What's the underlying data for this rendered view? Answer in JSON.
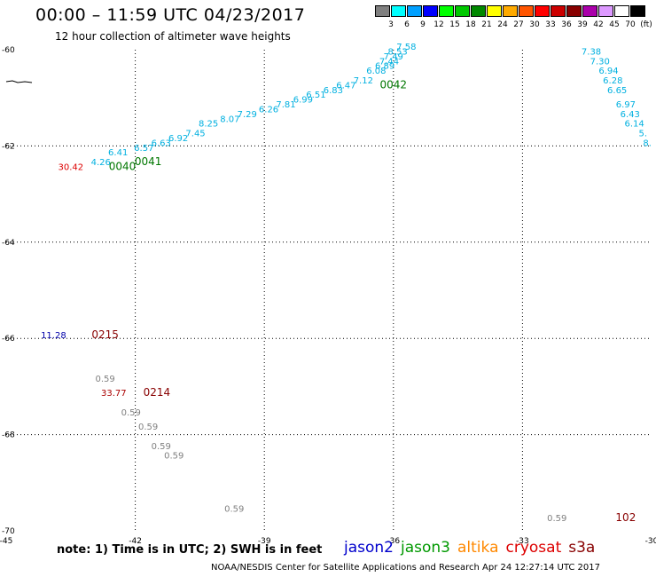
{
  "header": {
    "title": "00:00 – 11:59 UTC 04/23/2017",
    "subtitle": "12 hour collection of altimeter wave heights"
  },
  "color_scale": {
    "colors": [
      "#808080",
      "#00ffff",
      "#00a0ff",
      "#0000ff",
      "#00ff00",
      "#00c800",
      "#008800",
      "#ffff00",
      "#ffaa00",
      "#ff5500",
      "#ff0000",
      "#cc0000",
      "#880000",
      "#aa00aa",
      "#dd99ff",
      "#ffffff",
      "#000000"
    ],
    "labels": [
      "3",
      "6",
      "9",
      "12",
      "15",
      "18",
      "21",
      "24",
      "27",
      "30",
      "33",
      "36",
      "39",
      "42",
      "45",
      "70",
      "(ft)"
    ]
  },
  "chart_data": {
    "type": "scatter",
    "x_ticks": [
      "-45",
      "-42",
      "-39",
      "-36",
      "-33",
      "-30"
    ],
    "y_ticks": [
      "-60",
      "-62",
      "-64",
      "-66",
      "-68",
      "-70"
    ],
    "xlim": [
      -45,
      -30
    ],
    "ylim": [
      -70,
      -60
    ],
    "grid": true,
    "swh_labels": [
      {
        "text": "7.58",
        "lon": -35.7,
        "lat": -60.0,
        "color": "#00b0e0"
      },
      {
        "text": "8.53",
        "lon": -35.9,
        "lat": -60.1,
        "color": "#00b0e0"
      },
      {
        "text": "7.49",
        "lon": -36.0,
        "lat": -60.2,
        "color": "#00b0e0"
      },
      {
        "text": "7.44",
        "lon": -36.1,
        "lat": -60.3,
        "color": "#00b0e0"
      },
      {
        "text": "6.89",
        "lon": -36.2,
        "lat": -60.4,
        "color": "#00b0e0"
      },
      {
        "text": "6.08",
        "lon": -36.4,
        "lat": -60.5,
        "color": "#00b0e0"
      },
      {
        "text": "7.12",
        "lon": -36.7,
        "lat": -60.7,
        "color": "#00b0e0"
      },
      {
        "text": "6.47",
        "lon": -37.1,
        "lat": -60.8,
        "color": "#00b0e0"
      },
      {
        "text": "6.83",
        "lon": -37.4,
        "lat": -60.9,
        "color": "#00b0e0"
      },
      {
        "text": "6.51",
        "lon": -37.8,
        "lat": -61.0,
        "color": "#00b0e0"
      },
      {
        "text": "6.99",
        "lon": -38.1,
        "lat": -61.1,
        "color": "#00b0e0"
      },
      {
        "text": "7.81",
        "lon": -38.5,
        "lat": -61.2,
        "color": "#00b0e0"
      },
      {
        "text": "6.26",
        "lon": -38.9,
        "lat": -61.3,
        "color": "#00b0e0"
      },
      {
        "text": "7.29",
        "lon": -39.4,
        "lat": -61.4,
        "color": "#00b0e0"
      },
      {
        "text": "8.07",
        "lon": -39.8,
        "lat": -61.5,
        "color": "#00b0e0"
      },
      {
        "text": "8.25",
        "lon": -40.3,
        "lat": -61.6,
        "color": "#00b0e0"
      },
      {
        "text": "7.45",
        "lon": -40.6,
        "lat": -61.8,
        "color": "#00b0e0"
      },
      {
        "text": "6.92",
        "lon": -41.0,
        "lat": -61.9,
        "color": "#00b0e0"
      },
      {
        "text": "6.63",
        "lon": -41.4,
        "lat": -62.0,
        "color": "#00b0e0"
      },
      {
        "text": "6.57",
        "lon": -41.8,
        "lat": -62.1,
        "color": "#00b0e0"
      },
      {
        "text": "6.41",
        "lon": -42.4,
        "lat": -62.2,
        "color": "#00b0e0"
      },
      {
        "text": "4.26",
        "lon": -42.8,
        "lat": -62.4,
        "color": "#00b0e0"
      },
      {
        "text": "30.42",
        "lon": -43.5,
        "lat": -62.5,
        "color": "#dd0000"
      },
      {
        "text": "7.38",
        "lon": -31.4,
        "lat": -60.1,
        "color": "#00b0e0"
      },
      {
        "text": "7.30",
        "lon": -31.2,
        "lat": -60.3,
        "color": "#00b0e0"
      },
      {
        "text": "6.94",
        "lon": -31.0,
        "lat": -60.5,
        "color": "#00b0e0"
      },
      {
        "text": "6.28",
        "lon": -30.9,
        "lat": -60.7,
        "color": "#00b0e0"
      },
      {
        "text": "6.65",
        "lon": -30.8,
        "lat": -60.9,
        "color": "#00b0e0"
      },
      {
        "text": "6.97",
        "lon": -30.6,
        "lat": -61.2,
        "color": "#00b0e0"
      },
      {
        "text": "6.43",
        "lon": -30.5,
        "lat": -61.4,
        "color": "#00b0e0"
      },
      {
        "text": "6.14",
        "lon": -30.4,
        "lat": -61.6,
        "color": "#00b0e0"
      },
      {
        "text": "5.",
        "lon": -30.2,
        "lat": -61.8,
        "color": "#00b0e0"
      },
      {
        "text": "8.",
        "lon": -30.1,
        "lat": -62.0,
        "color": "#00b0e0"
      },
      {
        "text": "11.28",
        "lon": -43.9,
        "lat": -66.0,
        "color": "#0000aa"
      },
      {
        "text": "0.59",
        "lon": -42.7,
        "lat": -66.9,
        "color": "#808080"
      },
      {
        "text": "33.77",
        "lon": -42.5,
        "lat": -67.2,
        "color": "#aa0000"
      },
      {
        "text": "0.59",
        "lon": -42.1,
        "lat": -67.6,
        "color": "#808080"
      },
      {
        "text": "0.59",
        "lon": -41.7,
        "lat": -67.9,
        "color": "#808080"
      },
      {
        "text": "0.59",
        "lon": -41.4,
        "lat": -68.3,
        "color": "#808080"
      },
      {
        "text": "0.59",
        "lon": -41.1,
        "lat": -68.5,
        "color": "#808080"
      },
      {
        "text": "0.59",
        "lon": -39.7,
        "lat": -69.6,
        "color": "#808080"
      },
      {
        "text": "0.59",
        "lon": -32.2,
        "lat": -69.8,
        "color": "#808080"
      }
    ],
    "time_labels": [
      {
        "text": "0042",
        "lon": -36.0,
        "lat": -60.8,
        "color": "#007700"
      },
      {
        "text": "0041",
        "lon": -41.7,
        "lat": -62.4,
        "color": "#007700"
      },
      {
        "text": "0040",
        "lon": -42.3,
        "lat": -62.5,
        "color": "#007700"
      },
      {
        "text": "0215",
        "lon": -42.7,
        "lat": -66.0,
        "color": "#880000"
      },
      {
        "text": "0214",
        "lon": -41.5,
        "lat": -67.2,
        "color": "#880000"
      },
      {
        "text": "102",
        "lon": -30.6,
        "lat": -69.8,
        "color": "#880000"
      }
    ]
  },
  "footer": {
    "note": "note: 1) Time is in UTC; 2) SWH is in feet",
    "satellites": [
      {
        "name": "jason2",
        "color": "#0000cc"
      },
      {
        "name": "jason3",
        "color": "#009900"
      },
      {
        "name": "altika",
        "color": "#ff8800"
      },
      {
        "name": "cryosat",
        "color": "#dd0000"
      },
      {
        "name": "s3a",
        "color": "#880000"
      }
    ],
    "credit": "NOAA/NESDIS Center for Satellite Applications and Research    Apr 24 12:27:14 UTC 2017"
  }
}
